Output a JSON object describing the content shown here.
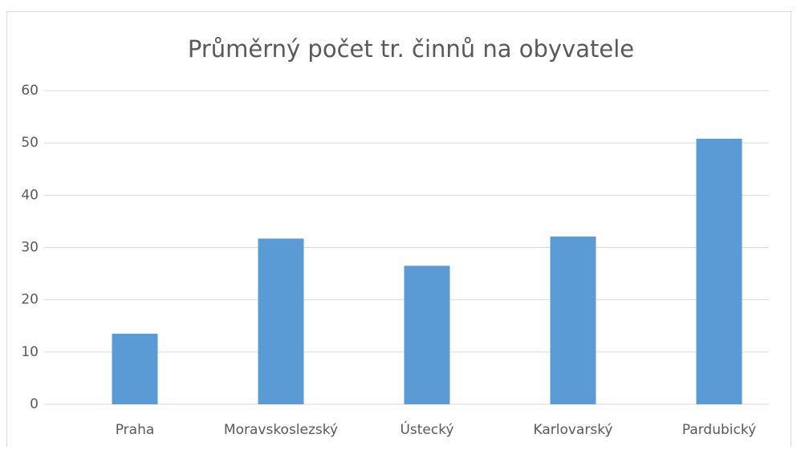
{
  "chart_data": {
    "type": "bar",
    "title": "Průměrný počet tr. činnů na obyvatele",
    "categories": [
      "Praha",
      "Moravskoslezský",
      "Ústecký",
      "Karlovarský",
      "Pardubický"
    ],
    "values": [
      13.5,
      31.7,
      26.5,
      32.1,
      50.8
    ],
    "color": "#5b9bd5",
    "ylim": [
      0,
      60
    ],
    "yticks": [
      0,
      10,
      20,
      30,
      40,
      50,
      60
    ],
    "grid": true
  }
}
